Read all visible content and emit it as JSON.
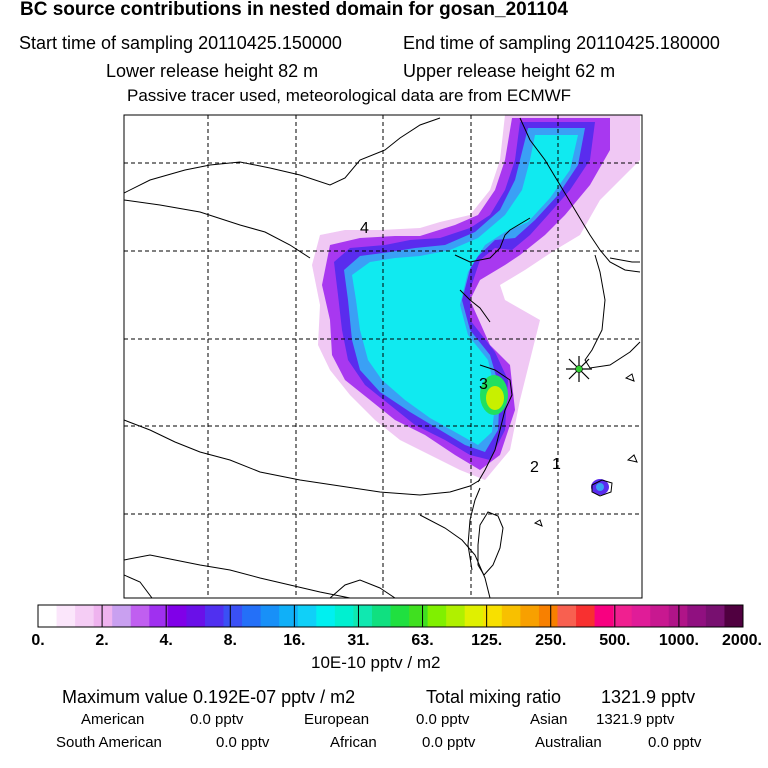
{
  "header": {
    "title": "BC  source contributions in nested domain for gosan_201104",
    "start_time": "Start time of sampling 20110425.150000",
    "end_time": "End time of sampling 20110425.180000",
    "lower_height": "Lower release height   82 m",
    "upper_height": "Upper release height   62 m",
    "tracer_note": "Passive tracer used, meteorological data are from ECMWF"
  },
  "map": {
    "markers": [
      {
        "label": "4"
      },
      {
        "label": "3"
      },
      {
        "label": "2"
      },
      {
        "label": "1"
      }
    ],
    "receptor_icon": "star-burst-icon"
  },
  "colorbar": {
    "colors": [
      "#ffffff",
      "#fbe6fb",
      "#f5cdf5",
      "#efb3ef",
      "#c9a0f0",
      "#c05ff0",
      "#a030f0",
      "#8000e8",
      "#6a10e8",
      "#5030f0",
      "#3a50f5",
      "#2470f8",
      "#1890f8",
      "#10b0f8",
      "#10d0f8",
      "#00f0f0",
      "#00f0d0",
      "#10e8b0",
      "#10e080",
      "#20e040",
      "#40e020",
      "#80f000",
      "#b0f000",
      "#e0f000",
      "#f8e000",
      "#f8c000",
      "#f8a000",
      "#f88000",
      "#f86050",
      "#f83030",
      "#f80080",
      "#f02090",
      "#e01c98",
      "#c81890",
      "#b01488",
      "#901080",
      "#781070",
      "#500040"
    ],
    "tick_labels": [
      "0.",
      "2.",
      "4.",
      "8.",
      "16.",
      "31.",
      "63.",
      "125.",
      "250.",
      "500.",
      "1000.",
      "2000."
    ],
    "units": "10E-10 pptv / m2"
  },
  "stats": {
    "max_label": "Maximum value  0.192E-07 pptv / m2",
    "total_label": "Total mixing ratio",
    "total_value": "1321.9 pptv"
  },
  "regions": [
    {
      "name": "American",
      "value": "0.0 pptv"
    },
    {
      "name": "European",
      "value": "0.0 pptv"
    },
    {
      "name": "Asian",
      "value": "1321.9 pptv"
    },
    {
      "name": "South American",
      "value": "0.0 pptv"
    },
    {
      "name": "African",
      "value": "0.0 pptv"
    },
    {
      "name": "Australian",
      "value": "0.0 pptv"
    }
  ]
}
